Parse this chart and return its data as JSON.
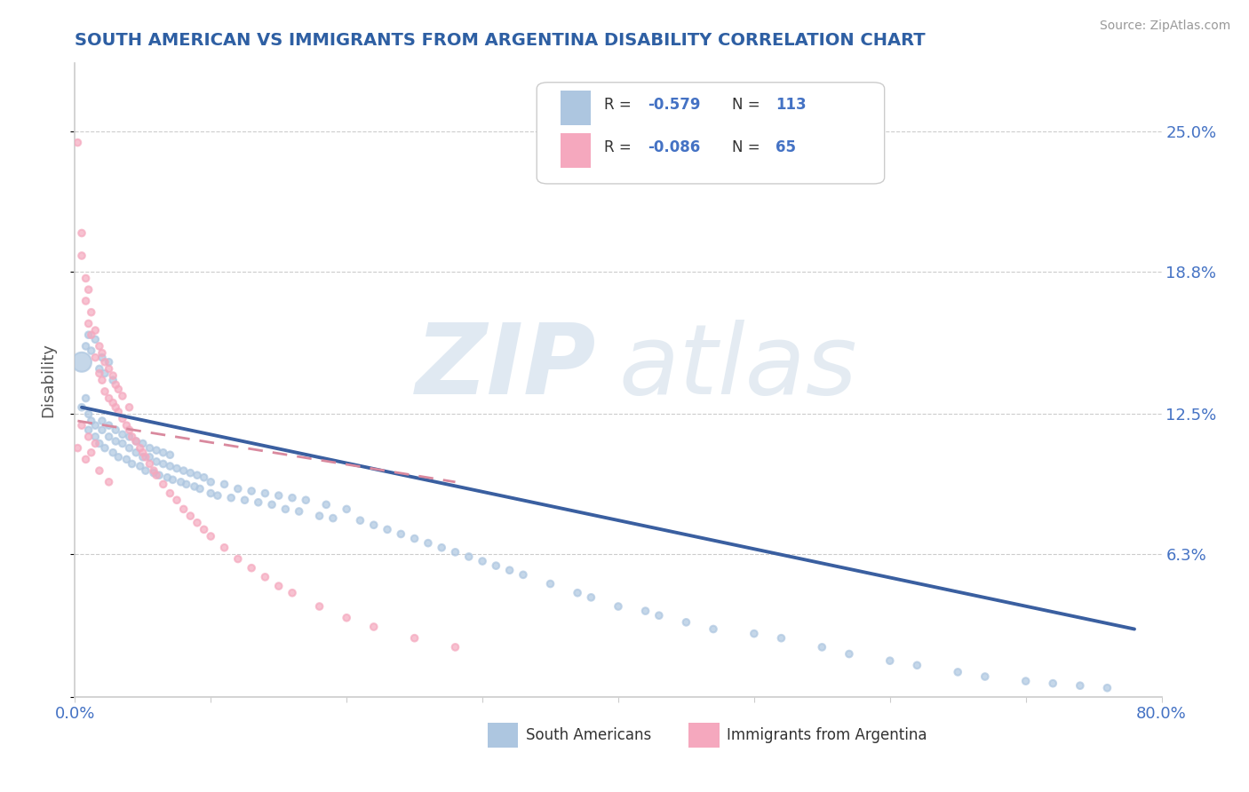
{
  "title": "SOUTH AMERICAN VS IMMIGRANTS FROM ARGENTINA DISABILITY CORRELATION CHART",
  "source": "Source: ZipAtlas.com",
  "ylabel": "Disability",
  "xlim": [
    0.0,
    0.8
  ],
  "ylim": [
    0.0,
    0.28
  ],
  "yticks": [
    0.0,
    0.063,
    0.125,
    0.188,
    0.25
  ],
  "ytick_labels": [
    "",
    "6.3%",
    "12.5%",
    "18.8%",
    "25.0%"
  ],
  "blue_color": "#adc6e0",
  "pink_color": "#f5a8be",
  "line_blue": "#3a5fa0",
  "line_pink": "#d9899e",
  "background": "#ffffff",
  "title_color": "#2e5fa3",
  "axis_label_color": "#555555",
  "tick_color": "#4472c4",
  "watermark_zip": "ZIP",
  "watermark_atlas": "atlas",
  "sa_x": [
    0.005,
    0.008,
    0.01,
    0.01,
    0.012,
    0.015,
    0.015,
    0.018,
    0.02,
    0.02,
    0.022,
    0.025,
    0.025,
    0.028,
    0.03,
    0.03,
    0.032,
    0.035,
    0.035,
    0.038,
    0.04,
    0.04,
    0.042,
    0.045,
    0.045,
    0.048,
    0.05,
    0.05,
    0.052,
    0.055,
    0.055,
    0.058,
    0.06,
    0.06,
    0.062,
    0.065,
    0.065,
    0.068,
    0.07,
    0.07,
    0.072,
    0.075,
    0.078,
    0.08,
    0.082,
    0.085,
    0.088,
    0.09,
    0.092,
    0.095,
    0.1,
    0.1,
    0.105,
    0.11,
    0.115,
    0.12,
    0.125,
    0.13,
    0.135,
    0.14,
    0.145,
    0.15,
    0.155,
    0.16,
    0.165,
    0.17,
    0.18,
    0.185,
    0.19,
    0.2,
    0.21,
    0.22,
    0.23,
    0.24,
    0.25,
    0.26,
    0.27,
    0.28,
    0.29,
    0.3,
    0.31,
    0.32,
    0.33,
    0.35,
    0.37,
    0.38,
    0.4,
    0.42,
    0.43,
    0.45,
    0.47,
    0.5,
    0.52,
    0.55,
    0.57,
    0.6,
    0.62,
    0.65,
    0.67,
    0.7,
    0.72,
    0.74,
    0.76,
    0.005,
    0.008,
    0.01,
    0.012,
    0.015,
    0.018,
    0.02,
    0.022,
    0.025,
    0.028
  ],
  "sa_y": [
    0.128,
    0.132,
    0.118,
    0.125,
    0.122,
    0.115,
    0.12,
    0.112,
    0.118,
    0.122,
    0.11,
    0.115,
    0.12,
    0.108,
    0.113,
    0.118,
    0.106,
    0.112,
    0.116,
    0.105,
    0.11,
    0.115,
    0.103,
    0.108,
    0.113,
    0.102,
    0.106,
    0.112,
    0.1,
    0.106,
    0.11,
    0.099,
    0.104,
    0.109,
    0.098,
    0.103,
    0.108,
    0.097,
    0.102,
    0.107,
    0.096,
    0.101,
    0.095,
    0.1,
    0.094,
    0.099,
    0.093,
    0.098,
    0.092,
    0.097,
    0.09,
    0.095,
    0.089,
    0.094,
    0.088,
    0.092,
    0.087,
    0.091,
    0.086,
    0.09,
    0.085,
    0.089,
    0.083,
    0.088,
    0.082,
    0.087,
    0.08,
    0.085,
    0.079,
    0.083,
    0.078,
    0.076,
    0.074,
    0.072,
    0.07,
    0.068,
    0.066,
    0.064,
    0.062,
    0.06,
    0.058,
    0.056,
    0.054,
    0.05,
    0.046,
    0.044,
    0.04,
    0.038,
    0.036,
    0.033,
    0.03,
    0.028,
    0.026,
    0.022,
    0.019,
    0.016,
    0.014,
    0.011,
    0.009,
    0.007,
    0.006,
    0.005,
    0.004,
    0.148,
    0.155,
    0.16,
    0.153,
    0.158,
    0.145,
    0.15,
    0.143,
    0.148,
    0.14
  ],
  "sa_size": [
    30,
    30,
    30,
    30,
    30,
    30,
    30,
    30,
    30,
    30,
    30,
    30,
    30,
    30,
    30,
    30,
    30,
    30,
    30,
    30,
    30,
    30,
    30,
    30,
    30,
    30,
    30,
    30,
    30,
    30,
    30,
    30,
    30,
    30,
    30,
    30,
    30,
    30,
    30,
    30,
    30,
    30,
    30,
    30,
    30,
    30,
    30,
    30,
    30,
    30,
    30,
    30,
    30,
    30,
    30,
    30,
    30,
    30,
    30,
    30,
    30,
    30,
    30,
    30,
    30,
    30,
    30,
    30,
    30,
    30,
    30,
    30,
    30,
    30,
    30,
    30,
    30,
    30,
    30,
    30,
    30,
    30,
    30,
    30,
    30,
    30,
    30,
    30,
    30,
    30,
    30,
    30,
    30,
    30,
    30,
    30,
    30,
    30,
    30,
    30,
    30,
    30,
    30,
    250,
    30,
    30,
    30,
    30,
    30,
    30,
    30,
    30,
    30
  ],
  "arg_x": [
    0.002,
    0.005,
    0.005,
    0.008,
    0.008,
    0.01,
    0.01,
    0.012,
    0.012,
    0.015,
    0.015,
    0.018,
    0.018,
    0.02,
    0.02,
    0.022,
    0.022,
    0.025,
    0.025,
    0.028,
    0.028,
    0.03,
    0.03,
    0.032,
    0.032,
    0.035,
    0.035,
    0.038,
    0.04,
    0.04,
    0.042,
    0.045,
    0.048,
    0.05,
    0.052,
    0.055,
    0.058,
    0.06,
    0.065,
    0.07,
    0.075,
    0.08,
    0.085,
    0.09,
    0.095,
    0.1,
    0.11,
    0.12,
    0.13,
    0.14,
    0.15,
    0.16,
    0.18,
    0.2,
    0.22,
    0.25,
    0.28,
    0.002,
    0.005,
    0.008,
    0.01,
    0.012,
    0.015,
    0.018,
    0.025
  ],
  "arg_y": [
    0.245,
    0.195,
    0.205,
    0.185,
    0.175,
    0.165,
    0.18,
    0.16,
    0.17,
    0.15,
    0.162,
    0.143,
    0.155,
    0.14,
    0.152,
    0.135,
    0.148,
    0.132,
    0.145,
    0.13,
    0.142,
    0.128,
    0.138,
    0.126,
    0.136,
    0.123,
    0.133,
    0.12,
    0.118,
    0.128,
    0.115,
    0.113,
    0.11,
    0.108,
    0.106,
    0.103,
    0.1,
    0.098,
    0.094,
    0.09,
    0.087,
    0.083,
    0.08,
    0.077,
    0.074,
    0.071,
    0.066,
    0.061,
    0.057,
    0.053,
    0.049,
    0.046,
    0.04,
    0.035,
    0.031,
    0.026,
    0.022,
    0.11,
    0.12,
    0.105,
    0.115,
    0.108,
    0.112,
    0.1,
    0.095
  ],
  "arg_size": [
    30,
    30,
    30,
    30,
    30,
    30,
    30,
    30,
    30,
    30,
    30,
    30,
    30,
    30,
    30,
    30,
    30,
    30,
    30,
    30,
    30,
    30,
    30,
    30,
    30,
    30,
    30,
    30,
    30,
    30,
    30,
    30,
    30,
    30,
    30,
    30,
    30,
    30,
    30,
    30,
    30,
    30,
    30,
    30,
    30,
    30,
    30,
    30,
    30,
    30,
    30,
    30,
    30,
    30,
    30,
    30,
    30,
    30,
    30,
    30,
    30,
    30,
    30,
    30,
    30
  ],
  "blue_line_x": [
    0.005,
    0.78
  ],
  "blue_line_y": [
    0.128,
    0.03
  ],
  "pink_line_x": [
    0.002,
    0.28
  ],
  "pink_line_y": [
    0.122,
    0.095
  ]
}
